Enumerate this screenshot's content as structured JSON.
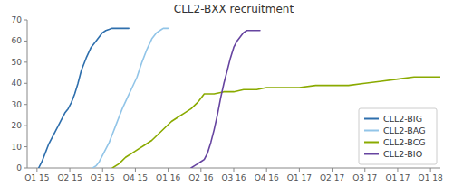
{
  "chart_data": {
    "type": "line",
    "title": "CLL2-BXX recruitment",
    "xlim": [
      -0.3,
      12.3
    ],
    "ylim": [
      0,
      70
    ],
    "xticks": [
      {
        "value": 0,
        "label": "Q1 15"
      },
      {
        "value": 1,
        "label": "Q2 15"
      },
      {
        "value": 2,
        "label": "Q3 15"
      },
      {
        "value": 3,
        "label": "Q4 15"
      },
      {
        "value": 4,
        "label": "Q1 16"
      },
      {
        "value": 5,
        "label": "Q2 16"
      },
      {
        "value": 6,
        "label": "Q3 16"
      },
      {
        "value": 7,
        "label": "Q4 16"
      },
      {
        "value": 8,
        "label": "Q1 17"
      },
      {
        "value": 9,
        "label": "Q2 17"
      },
      {
        "value": 10,
        "label": "Q3 17"
      },
      {
        "value": 11,
        "label": "Q1 17"
      },
      {
        "value": 12,
        "label": "Q1 18"
      }
    ],
    "yticks": [
      0,
      10,
      20,
      30,
      40,
      50,
      60,
      70
    ],
    "grid": false,
    "legend": "lower right",
    "series": [
      {
        "name": "CLL2-BIG",
        "color": "#2e6fad",
        "x": [
          0.05,
          0.15,
          0.25,
          0.35,
          0.45,
          0.55,
          0.65,
          0.75,
          0.85,
          0.95,
          1.05,
          1.15,
          1.25,
          1.35,
          1.5,
          1.65,
          1.8,
          1.9,
          2.0,
          2.1,
          2.2,
          2.28,
          2.36,
          2.44,
          2.52,
          2.6,
          2.65,
          2.7,
          2.75,
          2.8
        ],
        "values": [
          0,
          3,
          7,
          11,
          14,
          17,
          20,
          23,
          26,
          28,
          31,
          35,
          40,
          46,
          52,
          57,
          60,
          62,
          64,
          65,
          65.5,
          66,
          66,
          66,
          66,
          66,
          66,
          66,
          66,
          66
        ]
      },
      {
        "name": "CLL2-BAG",
        "color": "#92c5e8",
        "x": [
          1.7,
          1.8,
          1.9,
          2.0,
          2.1,
          2.2,
          2.3,
          2.4,
          2.5,
          2.6,
          2.75,
          2.9,
          3.05,
          3.2,
          3.35,
          3.5,
          3.65,
          3.8,
          3.85,
          3.9,
          3.95,
          4.0
        ],
        "values": [
          0,
          1,
          3,
          6,
          9,
          12,
          16,
          20,
          24,
          28,
          33,
          38,
          43,
          50,
          56,
          61,
          64,
          65.5,
          66,
          66,
          66,
          66
        ]
      },
      {
        "name": "CLL2-BCG",
        "color": "#8aaa00",
        "x": [
          2.3,
          2.5,
          2.7,
          2.9,
          3.1,
          3.3,
          3.5,
          3.7,
          3.9,
          4.1,
          4.3,
          4.5,
          4.7,
          4.9,
          5.0,
          5.1,
          5.15,
          5.2,
          5.4,
          5.7,
          6.0,
          6.3,
          6.7,
          7.0,
          7.5,
          8.0,
          8.5,
          9.0,
          9.5,
          10.0,
          10.5,
          11.0,
          11.5,
          12.0,
          12.3
        ],
        "values": [
          0,
          2,
          5,
          7,
          9,
          11,
          13,
          16,
          19,
          22,
          24,
          26,
          28,
          31,
          33,
          35,
          35,
          35,
          35,
          36,
          36,
          37,
          37,
          38,
          38,
          38,
          39,
          39,
          39,
          40,
          41,
          42,
          43,
          43,
          43
        ]
      },
      {
        "name": "CLL2-BIO",
        "color": "#6644a0",
        "x": [
          4.7,
          4.8,
          4.9,
          5.0,
          5.1,
          5.2,
          5.3,
          5.4,
          5.5,
          5.6,
          5.7,
          5.8,
          5.9,
          6.0,
          6.1,
          6.2,
          6.3,
          6.4,
          6.5,
          6.6,
          6.65,
          6.7,
          6.75,
          6.8
        ],
        "values": [
          0,
          1,
          2,
          3,
          4,
          7,
          12,
          18,
          25,
          33,
          40,
          46,
          52,
          57,
          60,
          62,
          64,
          65,
          65,
          65,
          65,
          65,
          65,
          65
        ]
      }
    ]
  }
}
